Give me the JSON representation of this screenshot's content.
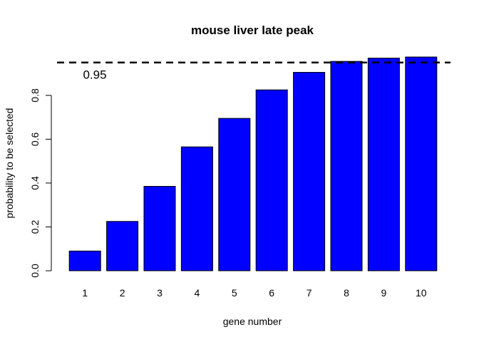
{
  "chart_data": {
    "type": "bar",
    "title": "mouse liver late peak",
    "xlabel": "gene number",
    "ylabel": "probability to be selected",
    "categories": [
      "1",
      "2",
      "3",
      "4",
      "5",
      "6",
      "7",
      "8",
      "9",
      "10"
    ],
    "values": [
      0.09,
      0.225,
      0.385,
      0.565,
      0.695,
      0.825,
      0.905,
      0.955,
      0.97,
      0.975
    ],
    "ylim": [
      0,
      0.975
    ],
    "y_ticks": [
      0.0,
      0.2,
      0.4,
      0.6,
      0.8
    ],
    "y_tick_labels": [
      "0.0",
      "0.2",
      "0.4",
      "0.6",
      "0.8"
    ],
    "bar_color": "#0000ff",
    "reference_line": {
      "value": 0.95,
      "label": "0.95",
      "style": "dashed"
    },
    "grid": false,
    "legend": "none"
  }
}
